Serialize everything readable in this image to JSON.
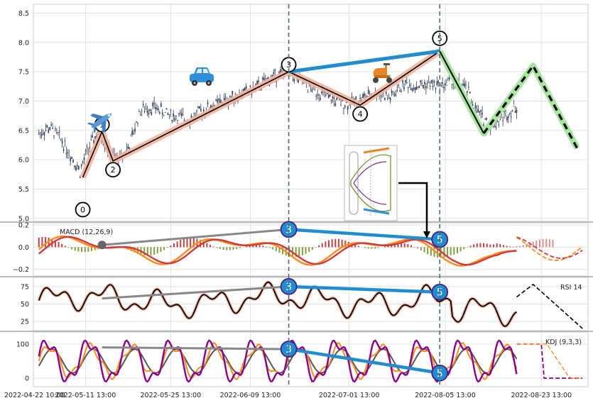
{
  "chart_data": {
    "type": "line",
    "subtype": "candlestick-elliott-wave-with-indicators",
    "x_tick_labels": [
      "2022-04-22 10:00",
      "2022-05-11 13:00",
      "2022-05-25 13:00",
      "2022-06-09 13:00",
      "2022-07-01 13:00",
      "2022-08-05 13:00",
      "2022-08-23 13:00"
    ],
    "price_panel": {
      "ylim": [
        4.95,
        8.65
      ],
      "y_ticks": [
        "5.0",
        "5.5",
        "6.0",
        "6.5",
        "7.0",
        "7.5",
        "8.0",
        "8.5"
      ],
      "grid": true,
      "price_path": [
        {
          "x": 0,
          "y": 6.45
        },
        {
          "x": 4,
          "y": 6.55
        },
        {
          "x": 8,
          "y": 6.35
        },
        {
          "x": 12,
          "y": 6.05
        },
        {
          "x": 15,
          "y": 5.8
        },
        {
          "x": 18,
          "y": 6.2
        },
        {
          "x": 22,
          "y": 6.5
        },
        {
          "x": 26,
          "y": 6.1
        },
        {
          "x": 29,
          "y": 6.0
        },
        {
          "x": 33,
          "y": 6.25
        },
        {
          "x": 37,
          "y": 6.85
        },
        {
          "x": 42,
          "y": 6.9
        },
        {
          "x": 48,
          "y": 6.75
        },
        {
          "x": 55,
          "y": 6.7
        },
        {
          "x": 62,
          "y": 6.9
        },
        {
          "x": 70,
          "y": 7.05
        },
        {
          "x": 78,
          "y": 7.2
        },
        {
          "x": 85,
          "y": 7.4
        },
        {
          "x": 91,
          "y": 7.5
        },
        {
          "x": 96,
          "y": 7.3
        },
        {
          "x": 102,
          "y": 7.15
        },
        {
          "x": 108,
          "y": 7.0
        },
        {
          "x": 113,
          "y": 6.95
        },
        {
          "x": 118,
          "y": 7.05
        },
        {
          "x": 123,
          "y": 7.15
        },
        {
          "x": 128,
          "y": 7.05
        },
        {
          "x": 133,
          "y": 7.3
        },
        {
          "x": 138,
          "y": 7.25
        },
        {
          "x": 142,
          "y": 7.3
        },
        {
          "x": 146,
          "y": 7.25
        },
        {
          "x": 150,
          "y": 7.35
        },
        {
          "x": 153,
          "y": 7.3
        },
        {
          "x": 156,
          "y": 7.2
        },
        {
          "x": 159,
          "y": 6.85
        },
        {
          "x": 162,
          "y": 6.7
        },
        {
          "x": 165,
          "y": 6.6
        },
        {
          "x": 168,
          "y": 6.7
        },
        {
          "x": 171,
          "y": 6.8
        },
        {
          "x": 174,
          "y": 6.9
        }
      ],
      "wave_points": [
        {
          "label": "0",
          "x": 16,
          "y": 5.7
        },
        {
          "label": "1",
          "x": 23,
          "y": 6.48
        },
        {
          "label": "2",
          "x": 27,
          "y": 5.98
        },
        {
          "label": "3",
          "x": 91,
          "y": 7.5
        },
        {
          "label": "4",
          "x": 117,
          "y": 6.93
        },
        {
          "label": "5",
          "x": 146,
          "y": 7.85
        }
      ],
      "projection_line": [
        {
          "x": 146,
          "y": 7.85
        },
        {
          "x": 162,
          "y": 6.45
        },
        {
          "x": 180,
          "y": 7.6
        },
        {
          "x": 196,
          "y": 6.2
        }
      ],
      "divergence_line": [
        {
          "x": 91,
          "y": 7.5
        },
        {
          "x": 146,
          "y": 7.85
        }
      ],
      "vertical_markers_x": [
        91,
        146
      ]
    },
    "macd_panel": {
      "label": "MACD (12,26,9)",
      "ylim": [
        -0.26,
        0.22
      ],
      "y_ticks": [
        "0.2",
        "0.0",
        "−0.2"
      ],
      "divergence_line": [
        {
          "x": 91,
          "y": 0.16
        },
        {
          "x": 146,
          "y": 0.07
        }
      ],
      "trend_line": [
        {
          "x": 23,
          "y": 0.02
        },
        {
          "x": 91,
          "y": 0.16
        }
      ],
      "labels": [
        "3",
        "5"
      ]
    },
    "rsi_panel": {
      "label": "RSI 14",
      "ylim": [
        12,
        88
      ],
      "y_ticks": [
        "25",
        "50",
        "75"
      ],
      "divergence_line": [
        {
          "x": 91,
          "y": 75
        },
        {
          "x": 146,
          "y": 67
        }
      ],
      "labels": [
        "3",
        "5"
      ]
    },
    "kdj_panel": {
      "label": "KDJ (9,3,3)",
      "ylim": [
        -25,
        135
      ],
      "y_ticks": [
        "0",
        "100"
      ],
      "divergence_line": [
        {
          "x": 91,
          "y": 85
        },
        {
          "x": 146,
          "y": 15
        }
      ],
      "labels": [
        "3",
        "5"
      ]
    },
    "colors": {
      "wave_band": "#f2b39c",
      "wave_line": "#000000",
      "divergence": "#1f8dd0",
      "trend_gray": "#888888",
      "projection_glow": "#a8e6a0",
      "candles": "#2e3a52",
      "macd_orange": "#ff8c1a",
      "macd_red": "#d03a3a",
      "hist_red": "#b22222",
      "hist_green": "#6b8e23",
      "kdj_purple": "#8b008b"
    },
    "icons": [
      "airplane-icon",
      "car-icon",
      "scooter-icon",
      "inset-diagram-icon"
    ],
    "grid": true,
    "legend": "none"
  }
}
